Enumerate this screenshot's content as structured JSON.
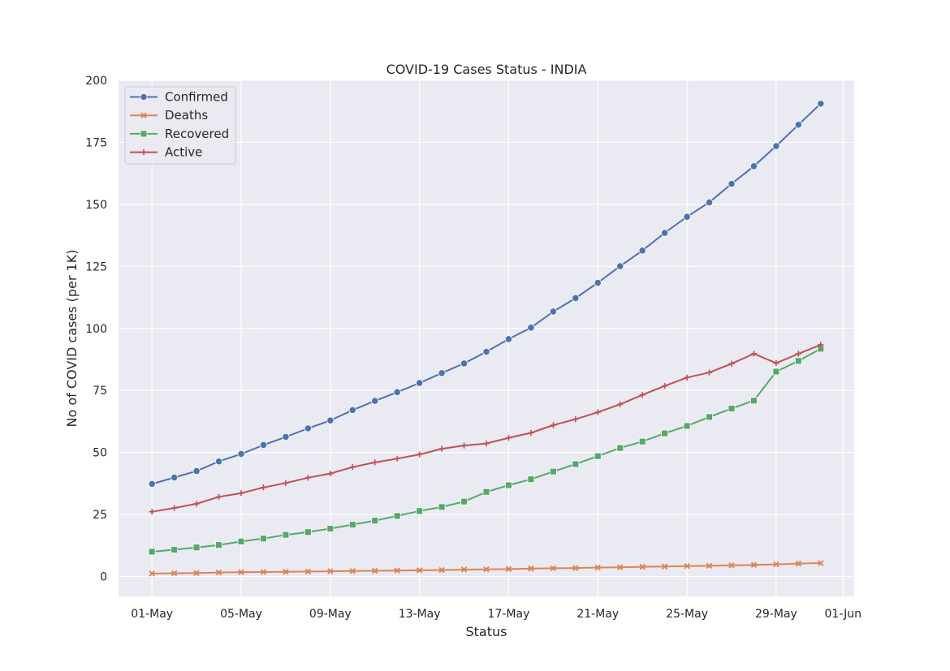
{
  "chart_data": {
    "type": "line",
    "title": "COVID-19 Cases Status - INDIA",
    "xlabel": "Status",
    "ylabel": "No of COVID cases (per 1K)",
    "ylim": [
      -8,
      200
    ],
    "yticks": [
      0,
      25,
      50,
      75,
      100,
      125,
      150,
      175,
      200
    ],
    "xticks": [
      {
        "date": "2020-05-01",
        "label": "01-May"
      },
      {
        "date": "2020-05-05",
        "label": "05-May"
      },
      {
        "date": "2020-05-09",
        "label": "09-May"
      },
      {
        "date": "2020-05-13",
        "label": "13-May"
      },
      {
        "date": "2020-05-17",
        "label": "17-May"
      },
      {
        "date": "2020-05-21",
        "label": "21-May"
      },
      {
        "date": "2020-05-25",
        "label": "25-May"
      },
      {
        "date": "2020-05-29",
        "label": "29-May"
      },
      {
        "date": "2020-06-01",
        "label": "01-Jun"
      }
    ],
    "xlim": [
      "2020-04-29T12:00",
      "2020-06-01T12:00"
    ],
    "grid": true,
    "legend_position": "top-left",
    "x": [
      "2020-05-01",
      "2020-05-02",
      "2020-05-03",
      "2020-05-04",
      "2020-05-05",
      "2020-05-06",
      "2020-05-07",
      "2020-05-08",
      "2020-05-09",
      "2020-05-10",
      "2020-05-11",
      "2020-05-12",
      "2020-05-13",
      "2020-05-14",
      "2020-05-15",
      "2020-05-16",
      "2020-05-17",
      "2020-05-18",
      "2020-05-19",
      "2020-05-20",
      "2020-05-21",
      "2020-05-22",
      "2020-05-23",
      "2020-05-24",
      "2020-05-25",
      "2020-05-26",
      "2020-05-27",
      "2020-05-28",
      "2020-05-29",
      "2020-05-30",
      "2020-05-31"
    ],
    "series": [
      {
        "name": "Confirmed",
        "color": "#4c72b0",
        "marker": "circle",
        "values": [
          37.3,
          39.9,
          42.5,
          46.4,
          49.4,
          53.0,
          56.3,
          59.7,
          62.9,
          67.1,
          70.8,
          74.3,
          78.0,
          82.0,
          85.9,
          90.6,
          95.7,
          100.3,
          106.8,
          112.2,
          118.4,
          125.1,
          131.4,
          138.5,
          145.0,
          150.8,
          158.3,
          165.4,
          173.5,
          182.1,
          190.6
        ]
      },
      {
        "name": "Deaths",
        "color": "#dd8452",
        "marker": "x",
        "values": [
          1.2,
          1.3,
          1.4,
          1.6,
          1.7,
          1.8,
          1.9,
          2.0,
          2.1,
          2.2,
          2.3,
          2.4,
          2.5,
          2.6,
          2.8,
          2.9,
          3.0,
          3.2,
          3.3,
          3.4,
          3.6,
          3.7,
          3.9,
          4.0,
          4.2,
          4.3,
          4.5,
          4.7,
          4.9,
          5.2,
          5.4
        ]
      },
      {
        "name": "Recovered",
        "color": "#55a868",
        "marker": "square",
        "values": [
          10.0,
          10.8,
          11.7,
          12.7,
          14.1,
          15.3,
          16.8,
          17.9,
          19.3,
          20.9,
          22.5,
          24.4,
          26.4,
          28.0,
          30.2,
          34.1,
          36.8,
          39.2,
          42.3,
          45.3,
          48.5,
          51.8,
          54.4,
          57.7,
          60.7,
          64.3,
          67.7,
          70.9,
          82.6,
          86.9,
          91.8
        ]
      },
      {
        "name": "Active",
        "color": "#c44e52",
        "marker": "plus",
        "values": [
          26.1,
          27.6,
          29.3,
          32.1,
          33.6,
          35.9,
          37.7,
          39.8,
          41.5,
          44.1,
          46.0,
          47.5,
          49.2,
          51.5,
          52.8,
          53.6,
          55.9,
          57.9,
          61.0,
          63.4,
          66.2,
          69.4,
          73.2,
          76.8,
          80.2,
          82.2,
          85.8,
          89.8,
          86.0,
          89.8,
          93.4
        ]
      }
    ]
  }
}
